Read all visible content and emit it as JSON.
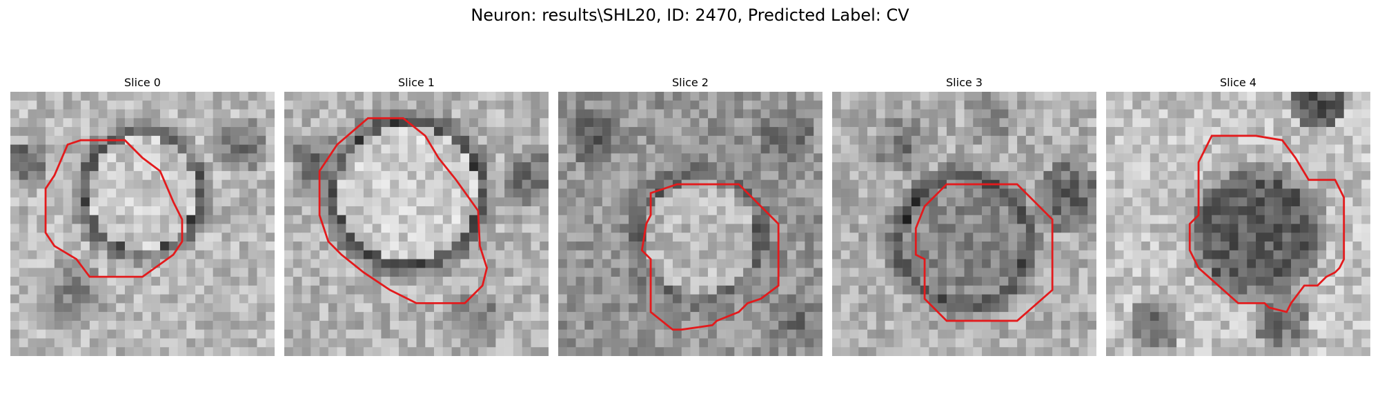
{
  "title": "Neuron: results\\SHL20, ID: 2470, Predicted Label: CV",
  "outline_color": "#e31a1c",
  "panels": [
    {
      "label": "Slice 0"
    },
    {
      "label": "Slice 1"
    },
    {
      "label": "Slice 2"
    },
    {
      "label": "Slice 3"
    },
    {
      "label": "Slice 4"
    }
  ]
}
